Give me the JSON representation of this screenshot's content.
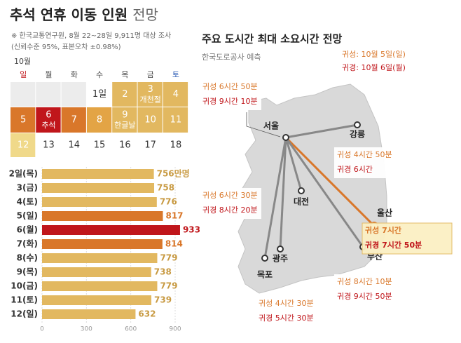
{
  "title": "추석 연휴 이동 인원",
  "title_suffix": "전망",
  "notes": [
    "※ 한국교통연구원, 8월 22~28일 9,911명 대상 조사",
    "(신뢰수준 95%, 표본오차 ±0.98%)"
  ],
  "calendar": {
    "month": "10월",
    "weekdays": [
      "일",
      "월",
      "화",
      "수",
      "목",
      "금",
      "토"
    ],
    "weeks": [
      [
        {
          "color": "#ececec"
        },
        {
          "color": "#ececec"
        },
        {
          "color": "#ececec"
        },
        {
          "text": "1일",
          "color": "#ffffff"
        },
        {
          "text": "2",
          "color": "#e2b860"
        },
        {
          "text": "3",
          "sub": "개천절",
          "color": "#e2b860"
        },
        {
          "text": "4",
          "color": "#e2b860"
        }
      ],
      [
        {
          "text": "5",
          "color": "#d9772a"
        },
        {
          "text": "6",
          "sub": "추석",
          "color": "#c0161b"
        },
        {
          "text": "7",
          "color": "#d9772a"
        },
        {
          "text": "8",
          "color": "#e3a445"
        },
        {
          "text": "9",
          "sub": "한글날",
          "color": "#e2b860"
        },
        {
          "text": "10",
          "color": "#e2b860"
        },
        {
          "text": "11",
          "color": "#e2b860"
        }
      ],
      [
        {
          "text": "12",
          "color": "#f0d98a"
        },
        {
          "text": "13",
          "color": "#ffffff"
        },
        {
          "text": "14",
          "color": "#ffffff"
        },
        {
          "text": "15",
          "color": "#ffffff"
        },
        {
          "text": "16",
          "color": "#ffffff"
        },
        {
          "text": "17",
          "color": "#ffffff"
        },
        {
          "text": "18",
          "color": "#ffffff"
        }
      ]
    ]
  },
  "chart_data": {
    "type": "hbar",
    "categories": [
      "2일(목)",
      "3(금)",
      "4(토)",
      "5(일)",
      "6(월)",
      "7(화)",
      "8(수)",
      "9(목)",
      "10(금)",
      "11(토)",
      "12(일)"
    ],
    "values": [
      756,
      758,
      776,
      817,
      933,
      814,
      779,
      738,
      779,
      739,
      632
    ],
    "value_labels": [
      "756만명",
      "758",
      "776",
      "817",
      "933",
      "814",
      "779",
      "738",
      "779",
      "739",
      "632"
    ],
    "colors": [
      "#e2b860",
      "#e2b860",
      "#e2b860",
      "#d9772a",
      "#c0161b",
      "#d9772a",
      "#e2b860",
      "#e2b860",
      "#e2b860",
      "#e2b860",
      "#e2b860"
    ],
    "xlim": [
      0,
      900
    ],
    "xticks": [
      0,
      300,
      600,
      900
    ],
    "grid": true
  },
  "map": {
    "title": "주요 도시간 최대 소요시간 전망",
    "source": "한국도로공사 예측",
    "legend": [
      "귀성: 10월 5일(일)",
      "귀경: 10월 6일(월)"
    ],
    "cities": [
      "서울",
      "강릉",
      "대전",
      "울산",
      "부산",
      "광주",
      "목포"
    ],
    "routes": [
      [
        "귀성 6시간 50분",
        "귀경 9시간 10분"
      ],
      [
        "귀성 4시간 50분",
        "귀경 6시간"
      ],
      [
        "귀성 6시간 30분",
        "귀경 8시간 20분"
      ],
      [
        "귀성 7시간",
        "귀경 7시간 50분"
      ],
      [
        "귀성 8시간 10분",
        "귀경 9시간 50분"
      ],
      [
        "귀성 4시간 30분",
        "귀경 5시간 30분"
      ]
    ]
  }
}
